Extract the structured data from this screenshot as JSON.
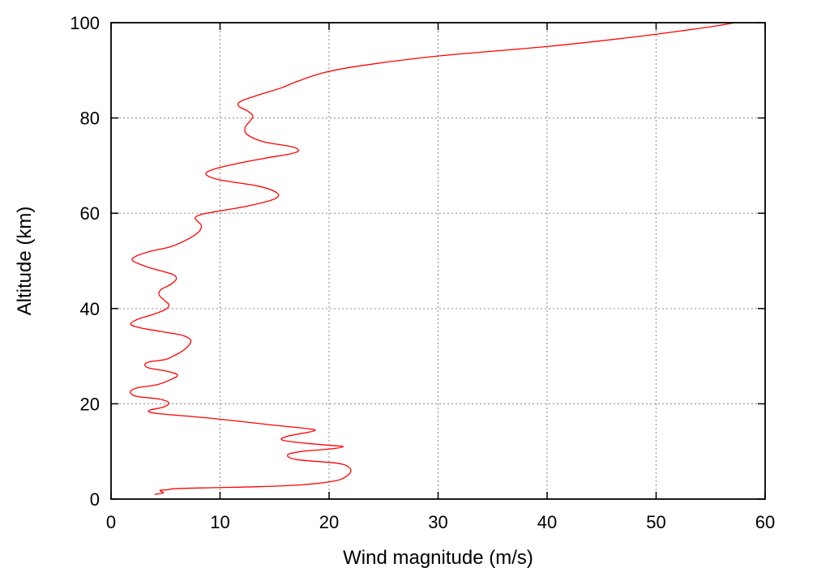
{
  "chart_data": {
    "type": "line",
    "title": "",
    "xlabel": "Wind magnitude (m/s)",
    "ylabel": "Altitude (km)",
    "xlim": [
      0,
      60
    ],
    "ylim": [
      0,
      100
    ],
    "xticks": [
      "0",
      "10",
      "20",
      "30",
      "40",
      "50",
      "60"
    ],
    "yticks": [
      "0",
      "20",
      "40",
      "60",
      "80",
      "100"
    ],
    "grid": true,
    "legend": "none",
    "series": [
      {
        "color": "#ff0000",
        "x": [
          4.0,
          4.8,
          4.5,
          5.3,
          6.0,
          9.5,
          13.5,
          17.5,
          20.5,
          21.6,
          22.0,
          21.6,
          20.5,
          17.0,
          16.2,
          17.5,
          20.0,
          21.3,
          20.0,
          17.5,
          15.7,
          16.2,
          18.6,
          18.0,
          15.0,
          9.0,
          5.0,
          3.6,
          3.6,
          4.8,
          5.3,
          4.4,
          2.5,
          1.9,
          1.8,
          2.5,
          4.2,
          5.3,
          6.1,
          5.2,
          3.5,
          3.1,
          3.5,
          5.0,
          5.7,
          6.5,
          7.1,
          7.3,
          6.5,
          4.5,
          2.6,
          1.8,
          2.4,
          3.9,
          5.0,
          5.3,
          4.9,
          4.4,
          4.6,
          5.5,
          6.0,
          5.5,
          3.5,
          2.0,
          2.3,
          3.6,
          5.5,
          7.0,
          8.0,
          8.3,
          8.0,
          7.7,
          8.2,
          9.5,
          12.5,
          15.0,
          15.2,
          13.5,
          10.0,
          8.7,
          9.5,
          11.5,
          14.0,
          16.5,
          17.2,
          16.5,
          14.0,
          12.5,
          12.3,
          12.8,
          13.0,
          12.5,
          11.7,
          11.9,
          13.5,
          15.6,
          17.0,
          19.5,
          23.0,
          30.0,
          40.0,
          48.0,
          53.0,
          56.0,
          57.2
        ],
        "y": [
          1.0,
          1.3,
          1.8,
          2.0,
          2.2,
          2.4,
          2.6,
          3.0,
          3.8,
          4.8,
          6.0,
          7.0,
          7.6,
          8.3,
          9.3,
          10.0,
          10.5,
          11.0,
          11.3,
          11.8,
          12.4,
          13.2,
          14.3,
          14.8,
          15.5,
          17.0,
          17.8,
          18.2,
          18.7,
          19.3,
          20.2,
          21.0,
          21.5,
          22.0,
          22.7,
          23.4,
          24.0,
          24.9,
          26.0,
          26.8,
          27.5,
          28.2,
          28.8,
          29.3,
          30.0,
          31.0,
          32.2,
          33.4,
          34.4,
          35.2,
          36.0,
          36.7,
          37.7,
          38.8,
          39.8,
          40.8,
          41.7,
          42.9,
          44.0,
          45.1,
          46.3,
          47.3,
          48.6,
          50.0,
          51.0,
          52.0,
          53.0,
          54.5,
          56.0,
          57.3,
          58.2,
          59.0,
          59.7,
          60.3,
          61.5,
          63.0,
          64.3,
          65.7,
          67.0,
          68.2,
          69.3,
          70.4,
          71.5,
          72.5,
          73.2,
          74.0,
          75.0,
          76.5,
          78.0,
          79.5,
          80.5,
          81.5,
          82.5,
          83.5,
          84.8,
          86.3,
          87.6,
          89.5,
          91.0,
          93.0,
          95.0,
          97.0,
          98.5,
          99.5,
          100.0
        ]
      }
    ]
  }
}
